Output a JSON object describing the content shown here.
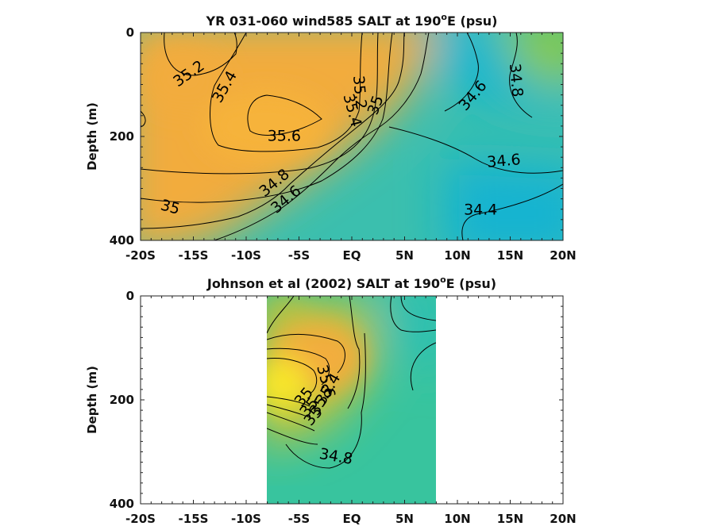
{
  "chart_data": [
    {
      "type": "heatmap",
      "title_main": "YR 031-060 wind585 SALT at 190",
      "title_sup": "o",
      "title_tail": "E (psu)",
      "ylabel": "Depth (m)",
      "xlabel": "",
      "xlim": [
        -20,
        20
      ],
      "ylim": [
        0,
        400
      ],
      "x_ticks": [
        -20,
        -15,
        -10,
        -5,
        0,
        5,
        10,
        15,
        20
      ],
      "x_tick_labels": [
        "-20S",
        "-15S",
        "-10S",
        "-5S",
        "EQ",
        "5N",
        "10N",
        "15N",
        "20N"
      ],
      "y_ticks": [
        0,
        200,
        400
      ],
      "y_tick_labels": [
        "0",
        "200",
        "400"
      ],
      "contour_labels": [
        {
          "text": "35.2",
          "x": -15.4,
          "y": 80
        },
        {
          "text": "35.4",
          "x": -12.0,
          "y": 105
        },
        {
          "text": "35.6",
          "x": -6.4,
          "y": 200
        },
        {
          "text": "35.2",
          "x": 0.7,
          "y": 115
        },
        {
          "text": "35.4",
          "x": 0.0,
          "y": 150
        },
        {
          "text": "35",
          "x": 2.3,
          "y": 140
        },
        {
          "text": "34.6",
          "x": 11.5,
          "y": 122
        },
        {
          "text": "34.8",
          "x": 15.5,
          "y": 92
        },
        {
          "text": "34.6",
          "x": 14.4,
          "y": 248
        },
        {
          "text": "34.8",
          "x": -7.3,
          "y": 290
        },
        {
          "text": "34.6",
          "x": -6.2,
          "y": 322
        },
        {
          "text": "35",
          "x": -17.2,
          "y": 337
        },
        {
          "text": "34.4",
          "x": 12.2,
          "y": 342
        }
      ]
    },
    {
      "type": "heatmap",
      "title_main": "Johnson et al (2002) SALT at 190",
      "title_sup": "o",
      "title_tail": "E (psu)",
      "ylabel": "Depth (m)",
      "xlabel": "",
      "xlim": [
        -20,
        20
      ],
      "ylim": [
        0,
        400
      ],
      "data_xlim": [
        -8,
        8
      ],
      "x_ticks": [
        -20,
        -15,
        -10,
        -5,
        0,
        5,
        10,
        15,
        20
      ],
      "x_tick_labels": [
        "-20S",
        "-15S",
        "-10S",
        "-5S",
        "EQ",
        "5N",
        "10N",
        "15N",
        "20N"
      ],
      "y_ticks": [
        0,
        200,
        400
      ],
      "y_tick_labels": [
        "0",
        "200",
        "400"
      ],
      "contour_labels": [
        {
          "text": "35",
          "x": -4.5,
          "y": 195
        },
        {
          "text": "35",
          "x": -4.0,
          "y": 215
        },
        {
          "text": "35",
          "x": -3.6,
          "y": 232
        },
        {
          "text": "35.2",
          "x": -2.8,
          "y": 200
        },
        {
          "text": "35.4",
          "x": -2.2,
          "y": 180
        },
        {
          "text": "35.6",
          "x": -2.5,
          "y": 165
        },
        {
          "text": "34.8",
          "x": -1.5,
          "y": 310
        }
      ]
    }
  ]
}
